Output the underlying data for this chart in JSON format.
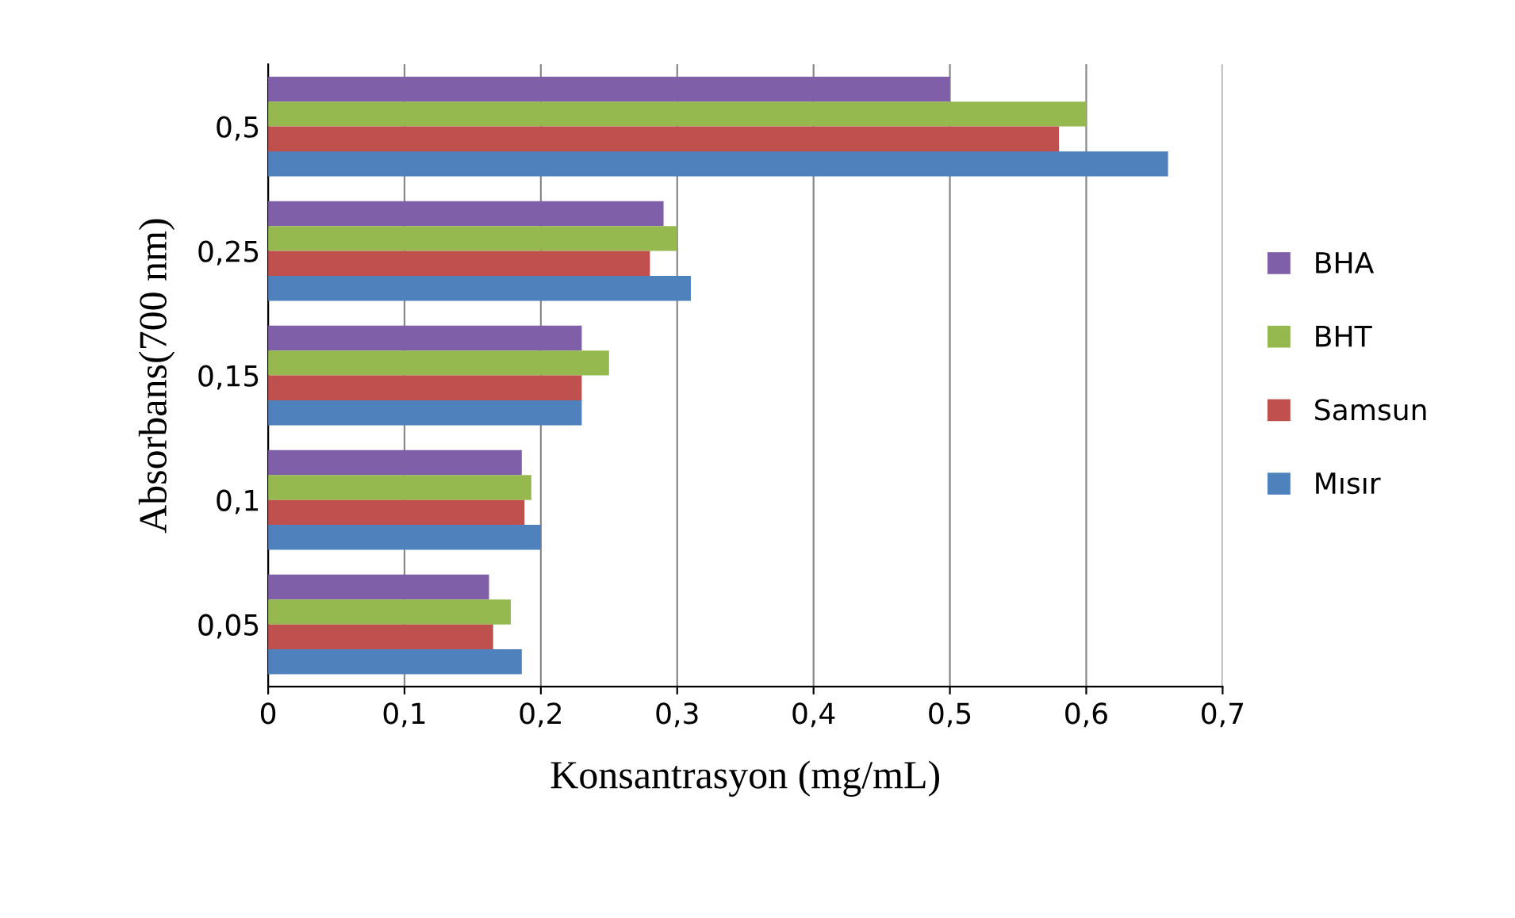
{
  "chart_data": {
    "type": "bar",
    "orientation": "horizontal",
    "xlabel": "Konsantrasyon (mg/mL)",
    "ylabel": "Absorbans(700 nm)",
    "categories": [
      "0,5",
      "0,25",
      "0,15",
      "0,1",
      "0,05"
    ],
    "series": [
      {
        "name": "BHA",
        "color": "#7f5fa8",
        "values": [
          0.5,
          0.29,
          0.23,
          0.186,
          0.162
        ]
      },
      {
        "name": "BHT",
        "color": "#95b94e",
        "values": [
          0.6,
          0.3,
          0.25,
          0.193,
          0.178
        ]
      },
      {
        "name": "Samsun",
        "color": "#c0504d",
        "values": [
          0.58,
          0.28,
          0.23,
          0.188,
          0.165
        ]
      },
      {
        "name": "Mısır",
        "color": "#4f81bd",
        "values": [
          0.66,
          0.31,
          0.23,
          0.2,
          0.186
        ]
      }
    ],
    "xlim": [
      0,
      0.7
    ],
    "xticks": [
      {
        "value": 0,
        "label": "0"
      },
      {
        "value": 0.1,
        "label": "0,1"
      },
      {
        "value": 0.2,
        "label": "0,2"
      },
      {
        "value": 0.3,
        "label": "0,3"
      },
      {
        "value": 0.4,
        "label": "0,4"
      },
      {
        "value": 0.5,
        "label": "0,5"
      },
      {
        "value": 0.6,
        "label": "0,6"
      },
      {
        "value": 0.7,
        "label": "0,7"
      }
    ],
    "grid": "x",
    "legend": "right"
  }
}
